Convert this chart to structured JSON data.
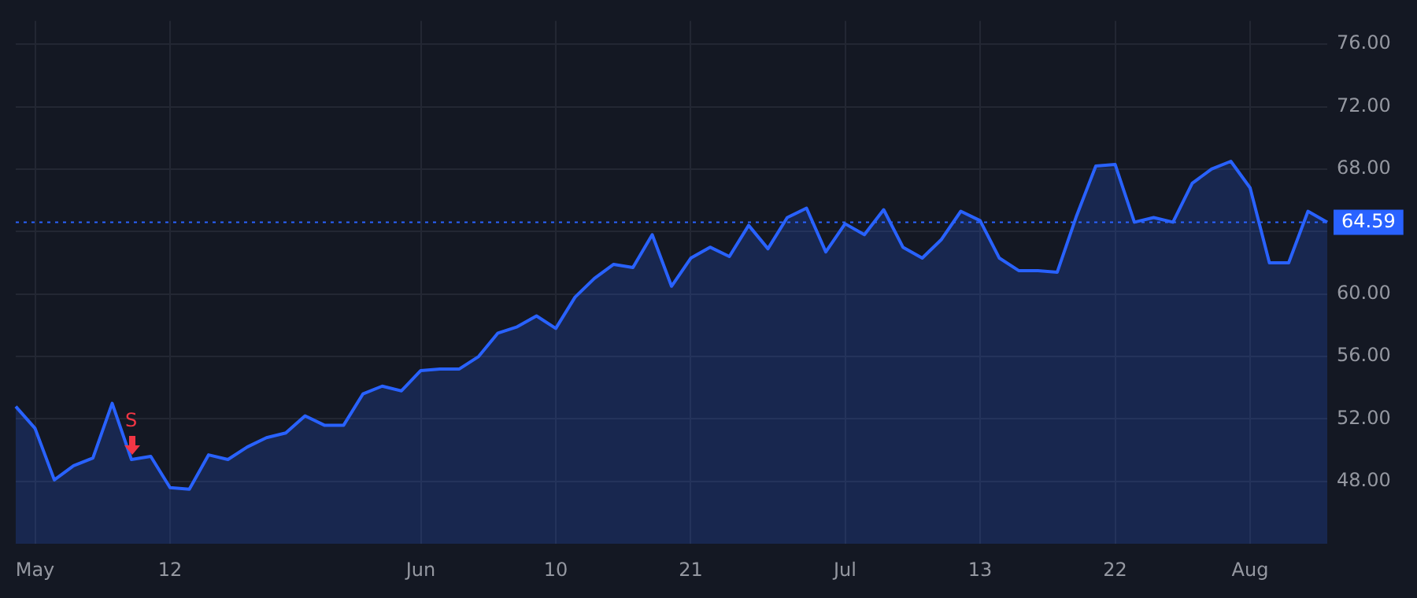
{
  "chart_data": {
    "type": "area",
    "categories": [
      null,
      "May",
      null,
      null,
      null,
      null,
      null,
      null,
      "12",
      null,
      null,
      null,
      null,
      null,
      null,
      null,
      null,
      null,
      null,
      null,
      null,
      "Jun",
      null,
      null,
      null,
      null,
      null,
      null,
      "10",
      null,
      null,
      null,
      null,
      null,
      null,
      "21",
      null,
      null,
      null,
      null,
      null,
      null,
      null,
      "Jul",
      null,
      null,
      null,
      null,
      null,
      null,
      "13",
      null,
      null,
      null,
      null,
      null,
      null,
      "22",
      null,
      null,
      null,
      null,
      null,
      null,
      "Aug",
      null,
      null,
      null,
      null
    ],
    "series": [
      {
        "color": "#2962ff",
        "values": [
          52.8,
          51.4,
          48.1,
          49.0,
          49.5,
          53.0,
          49.4,
          49.6,
          47.6,
          47.5,
          49.7,
          49.4,
          50.2,
          50.8,
          51.1,
          52.2,
          51.6,
          51.6,
          53.6,
          54.1,
          53.8,
          55.1,
          55.2,
          55.2,
          56.0,
          57.5,
          57.9,
          58.6,
          57.8,
          59.8,
          61.0,
          61.9,
          61.7,
          63.8,
          60.5,
          62.3,
          63.0,
          62.4,
          64.4,
          62.9,
          64.9,
          65.5,
          62.7,
          64.5,
          63.8,
          65.4,
          63.0,
          62.3,
          63.5,
          65.3,
          64.7,
          62.3,
          61.5,
          61.5,
          61.4,
          65.0,
          68.2,
          68.3,
          64.6,
          64.9,
          64.6,
          67.1,
          68.0,
          68.5,
          66.8,
          62.0,
          62.0,
          65.3,
          64.6
        ]
      }
    ],
    "ylim": [
      44,
      77.5
    ],
    "yticks": [
      {
        "value": 48,
        "label": "48.00"
      },
      {
        "value": 52,
        "label": "52.00"
      },
      {
        "value": 56,
        "label": "56.00"
      },
      {
        "value": 60,
        "label": "60.00"
      },
      {
        "value": 64,
        "label": null
      },
      {
        "value": 68,
        "label": "68.00"
      },
      {
        "value": 72,
        "label": "72.00"
      },
      {
        "value": 76,
        "label": "76.00"
      }
    ],
    "ref_lines": [
      {
        "axis": "y",
        "value": 64.59,
        "label": "64.59",
        "color": "#2962ff",
        "line_style": "dotted"
      }
    ],
    "annotations": [
      "S"
    ],
    "grid": true,
    "legend": false,
    "marker": "none",
    "line_style": "solid"
  }
}
